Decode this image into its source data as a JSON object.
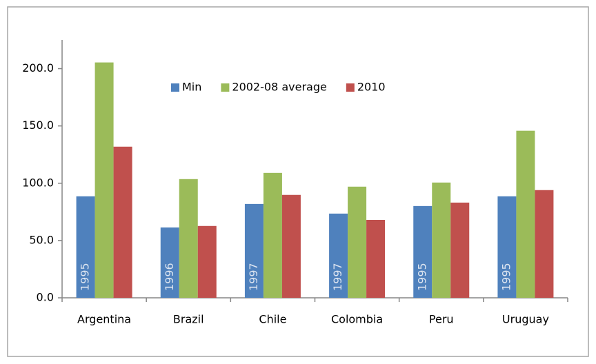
{
  "chart_data": {
    "type": "bar",
    "categories": [
      "Argentina",
      "Brazil",
      "Chile",
      "Colombia",
      "Peru",
      "Uruguay"
    ],
    "series": [
      {
        "name": "Min",
        "color": "#4f81bd",
        "values": [
          88.6,
          61.4,
          81.9,
          73.5,
          80.1,
          88.6
        ],
        "year_labels": [
          "1995",
          "1996",
          "1997",
          "1997",
          "1995",
          "1995"
        ]
      },
      {
        "name": "2002-08 average",
        "color": "#9bbb59",
        "values": [
          205.4,
          103.6,
          109.0,
          97.0,
          100.6,
          145.8
        ]
      },
      {
        "name": "2010",
        "color": "#c0504d",
        "values": [
          131.9,
          62.7,
          89.8,
          68.0,
          83.1,
          94.0
        ]
      }
    ],
    "ylim": [
      0,
      225
    ],
    "yticks": [
      {
        "value": 0,
        "label": "0.0"
      },
      {
        "value": 50,
        "label": "50.0"
      },
      {
        "value": 100,
        "label": "100.0"
      },
      {
        "value": 150,
        "label": "150.0"
      },
      {
        "value": 200,
        "label": "200.0"
      }
    ],
    "grid": false,
    "legend": "top"
  }
}
